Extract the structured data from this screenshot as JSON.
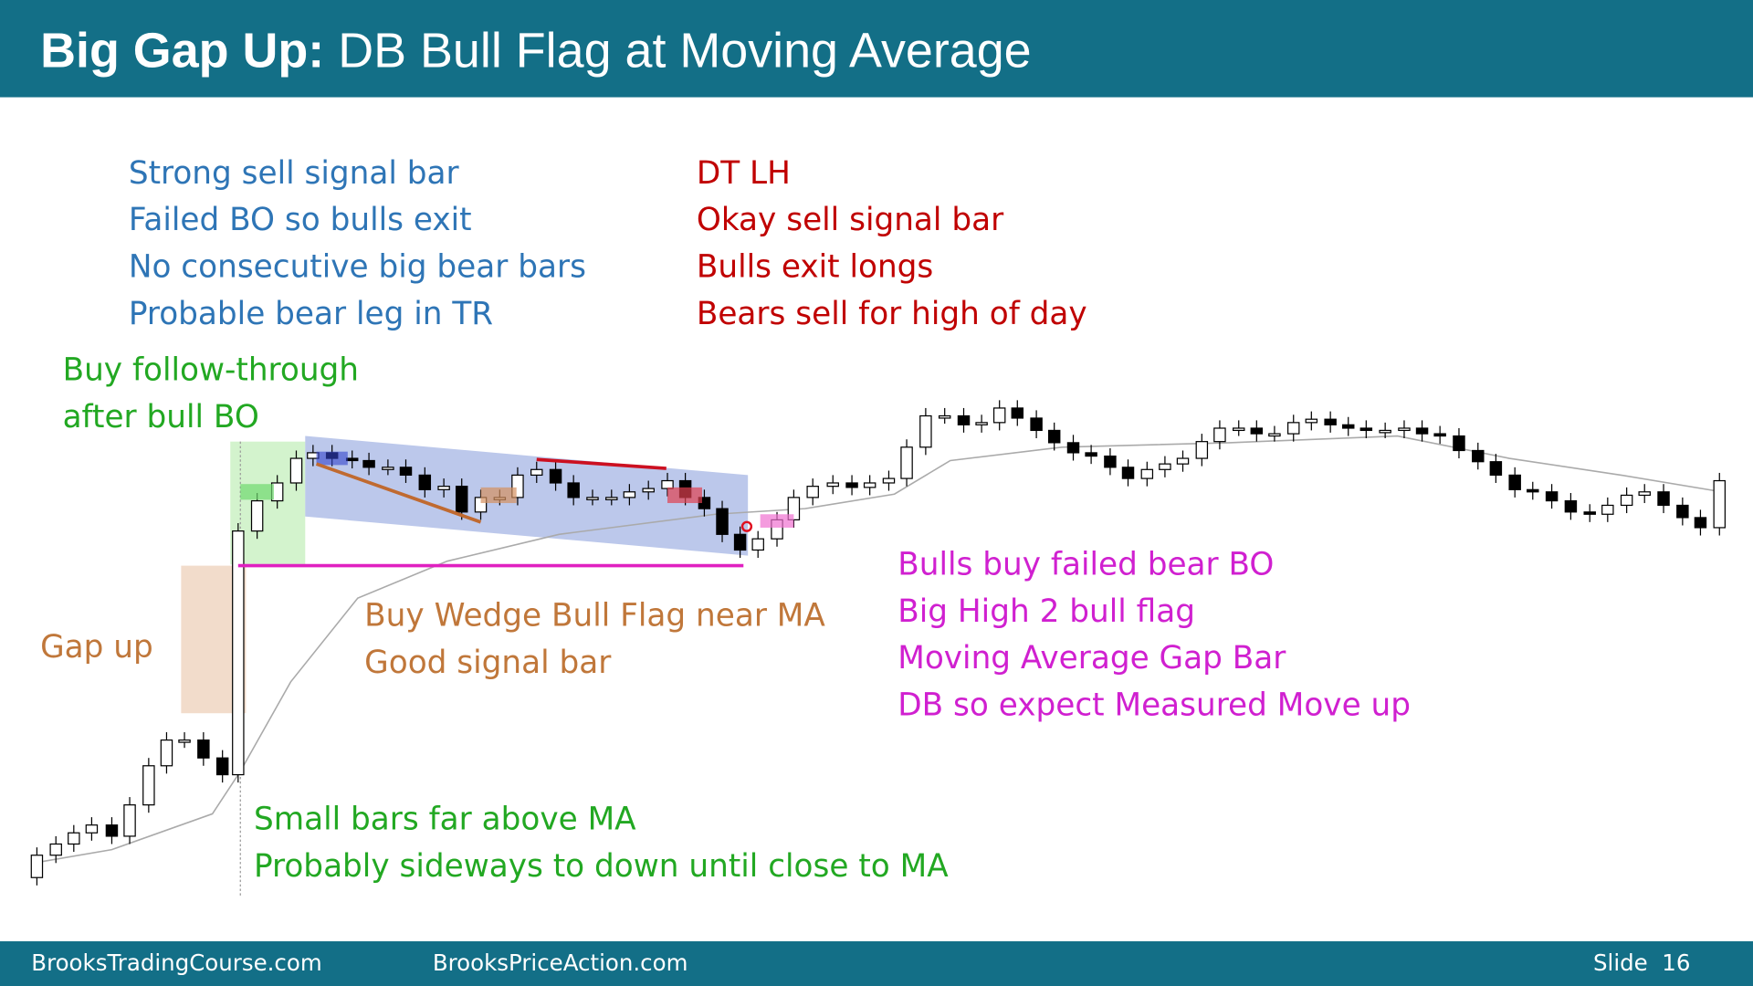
{
  "header": {
    "title_bold": "Big Gap Up:",
    "title_rest": " DB Bull Flag at Moving Average"
  },
  "notes": {
    "blue": [
      "Strong sell signal bar",
      "Failed BO so bulls exit",
      "No consecutive big bear bars",
      "Probable bear leg in TR"
    ],
    "red": [
      "DT LH",
      "Okay sell signal bar",
      "Bulls exit longs",
      "Bears sell for high of day"
    ],
    "green_top": [
      "Buy follow-through",
      "after bull BO"
    ],
    "gap": [
      "Gap up"
    ],
    "brown": [
      "Buy Wedge Bull Flag near MA",
      "Good signal bar"
    ],
    "magenta": [
      "Bulls buy failed bear BO",
      "Big High 2 bull flag",
      "Moving Average Gap Bar",
      "DB so expect Measured Move up"
    ],
    "green_bottom": [
      "Small bars far above MA",
      "Probably sideways to down until close to MA"
    ]
  },
  "footer": {
    "left": "BrooksTradingCourse.com",
    "middle": "BrooksPriceAction.com",
    "slide": "Slide  16"
  }
}
